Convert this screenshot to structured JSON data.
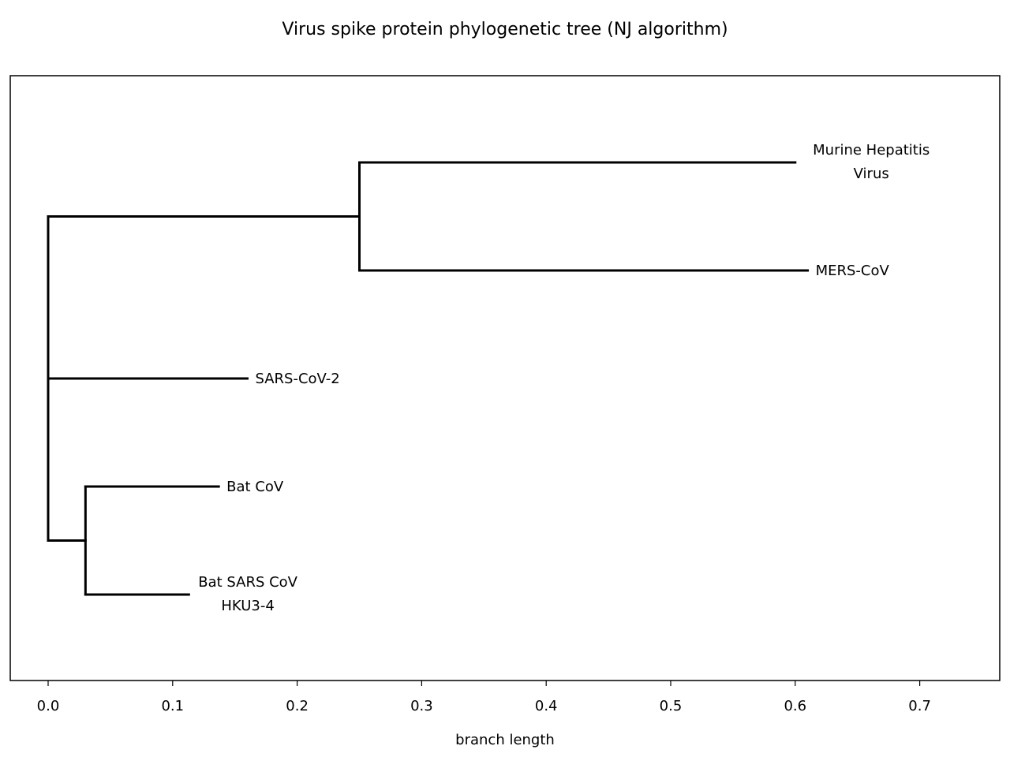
{
  "title": "Virus spike protein phylogenetic tree (NJ algorithm)",
  "chart_data": {
    "type": "dendrogram",
    "title": "Virus spike protein phylogenetic tree (NJ algorithm)",
    "xlabel": "branch length",
    "xlim": [
      -0.031,
      0.765
    ],
    "x_ticks": [
      0.0,
      0.1,
      0.2,
      0.3,
      0.4,
      0.5,
      0.6,
      0.7
    ],
    "x_tick_labels": [
      "0.0",
      "0.1",
      "0.2",
      "0.3",
      "0.4",
      "0.5",
      "0.6",
      "0.7"
    ],
    "grid": false,
    "leaves": [
      {
        "id": "mhv",
        "label": [
          "Murine Hepatitis",
          "Virus"
        ],
        "x_end": 0.6,
        "row": 1
      },
      {
        "id": "mers",
        "label": [
          "MERS-CoV"
        ],
        "x_end": 0.61,
        "row": 2
      },
      {
        "id": "sars2",
        "label": [
          "SARS-CoV-2"
        ],
        "x_end": 0.16,
        "row": 3
      },
      {
        "id": "batcov",
        "label": [
          "Bat CoV"
        ],
        "x_end": 0.137,
        "row": 4
      },
      {
        "id": "hku3",
        "label": [
          "Bat SARS CoV",
          "HKU3-4"
        ],
        "x_end": 0.113,
        "row": 5
      }
    ],
    "internal_nodes": [
      {
        "id": "root",
        "x": 0.0,
        "children": [
          "n_mhv_mers",
          "sars2",
          "n_bat"
        ]
      },
      {
        "id": "n_mhv_mers",
        "x": 0.25,
        "children": [
          "mhv",
          "mers"
        ]
      },
      {
        "id": "n_bat",
        "x": 0.03,
        "children": [
          "batcov",
          "hku3"
        ]
      }
    ]
  }
}
